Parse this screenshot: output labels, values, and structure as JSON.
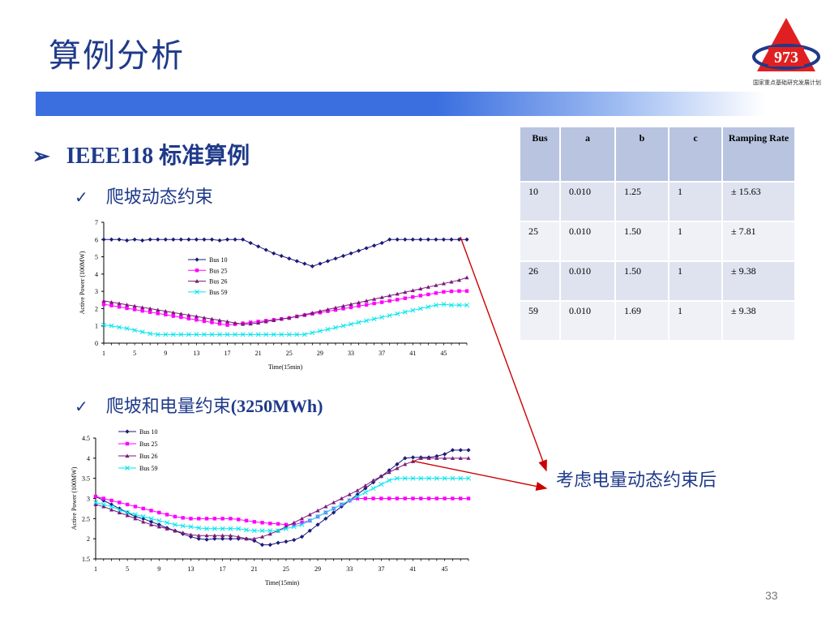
{
  "slide": {
    "title": "算例分析",
    "logo_number": "973",
    "logo_caption": "国家重点基础研究发展计划",
    "bullet_marker": "➢",
    "check_marker": "✓",
    "bullet1": "IEEE118 标准算例",
    "sub1": "爬坡动态约束",
    "sub2_text": "爬坡和电量约束",
    "sub2_paren": "(3250MWh)",
    "annotation": "考虑电量动态约束后",
    "page_number": "33",
    "arrow_color": "#cc0000"
  },
  "table": {
    "headers": [
      "Bus",
      "a",
      "b",
      "c",
      "Ramping Rate"
    ],
    "rows": [
      [
        "10",
        "0.010",
        "1.25",
        "1",
        "± 15.63"
      ],
      [
        "25",
        "0.010",
        "1.50",
        "1",
        "±   7.81"
      ],
      [
        "26",
        "0.010",
        "1.50",
        "1",
        "±   9.38"
      ],
      [
        "59",
        "0.010",
        "1.69",
        "1",
        "±   9.38"
      ]
    ]
  },
  "chart_data": [
    {
      "type": "line",
      "title": "",
      "xlabel": "Time(15min)",
      "ylabel": "Active Power (100MW)",
      "xlim": [
        1,
        48
      ],
      "ylim": [
        0,
        7
      ],
      "x_ticks": [
        "1",
        "5",
        "9",
        "13",
        "17",
        "21",
        "25",
        "29",
        "33",
        "37",
        "41",
        "45"
      ],
      "y_ticks": [
        "0",
        "1",
        "2",
        "3",
        "4",
        "5",
        "6",
        "7"
      ],
      "legend_placement": "center",
      "grid": false,
      "series": [
        {
          "name": "Bus  10",
          "color": "#1a1a7a",
          "marker": "diamond",
          "values": [
            6,
            6,
            6,
            5.95,
            6,
            5.95,
            6,
            6,
            6,
            6,
            6,
            6,
            6,
            6,
            6,
            5.95,
            6,
            6,
            6,
            5.8,
            5.6,
            5.4,
            5.2,
            5.05,
            4.9,
            4.75,
            4.6,
            4.45,
            4.6,
            4.75,
            4.9,
            5.05,
            5.2,
            5.35,
            5.5,
            5.65,
            5.8,
            6,
            6,
            6,
            6,
            6,
            6,
            6,
            6,
            6,
            6,
            6
          ]
        },
        {
          "name": "Bus  25",
          "color": "#ff00ff",
          "marker": "square",
          "values": [
            2.25,
            2.18,
            2.1,
            2.02,
            1.95,
            1.87,
            1.8,
            1.72,
            1.65,
            1.57,
            1.5,
            1.42,
            1.35,
            1.27,
            1.2,
            1.12,
            1.05,
            1.1,
            1.15,
            1.2,
            1.25,
            1.3,
            1.35,
            1.4,
            1.45,
            1.55,
            1.62,
            1.7,
            1.77,
            1.85,
            1.92,
            2,
            2.07,
            2.15,
            2.22,
            2.3,
            2.37,
            2.45,
            2.52,
            2.6,
            2.67,
            2.75,
            2.82,
            2.9,
            2.97,
            3,
            3.02,
            3.02
          ]
        },
        {
          "name": "Bus  26",
          "color": "#7a1a7a",
          "marker": "triangle",
          "values": [
            2.45,
            2.37,
            2.3,
            2.22,
            2.15,
            2.07,
            2,
            1.92,
            1.85,
            1.77,
            1.7,
            1.62,
            1.55,
            1.47,
            1.4,
            1.32,
            1.25,
            1.17,
            1.1,
            1.12,
            1.17,
            1.25,
            1.32,
            1.4,
            1.47,
            1.55,
            1.65,
            1.75,
            1.85,
            1.95,
            2.05,
            2.15,
            2.25,
            2.35,
            2.45,
            2.55,
            2.65,
            2.75,
            2.85,
            2.95,
            3.05,
            3.15,
            3.25,
            3.35,
            3.45,
            3.55,
            3.65,
            3.8
          ]
        },
        {
          "name": "Bus  59",
          "color": "#00e5ee",
          "marker": "x",
          "values": [
            1.05,
            1,
            0.92,
            0.85,
            0.75,
            0.65,
            0.55,
            0.5,
            0.5,
            0.5,
            0.5,
            0.5,
            0.5,
            0.5,
            0.5,
            0.5,
            0.5,
            0.5,
            0.5,
            0.5,
            0.5,
            0.5,
            0.5,
            0.5,
            0.5,
            0.5,
            0.5,
            0.6,
            0.7,
            0.8,
            0.9,
            1,
            1.1,
            1.2,
            1.3,
            1.4,
            1.5,
            1.6,
            1.7,
            1.8,
            1.9,
            2,
            2.1,
            2.2,
            2.25,
            2.2,
            2.2,
            2.2
          ]
        }
      ]
    },
    {
      "type": "line",
      "title": "",
      "xlabel": "Time(15min)",
      "ylabel": "Active Power (100MW)",
      "xlim": [
        1,
        48
      ],
      "ylim": [
        1.5,
        4.5
      ],
      "x_ticks": [
        "1",
        "5",
        "9",
        "13",
        "17",
        "21",
        "25",
        "29",
        "33",
        "37",
        "41",
        "45"
      ],
      "y_ticks": [
        "1.5",
        "2",
        "2.5",
        "3",
        "3.5",
        "4",
        "4.5"
      ],
      "legend_placement": "top-left",
      "grid": false,
      "series": [
        {
          "name": "Bus 10",
          "color": "#1a1a7a",
          "marker": "diamond",
          "values": [
            3.05,
            2.95,
            2.85,
            2.75,
            2.65,
            2.55,
            2.5,
            2.42,
            2.35,
            2.27,
            2.2,
            2.12,
            2.05,
            2,
            1.98,
            2,
            2,
            2,
            2,
            2,
            1.95,
            1.85,
            1.85,
            1.9,
            1.93,
            1.97,
            2.05,
            2.2,
            2.35,
            2.5,
            2.65,
            2.8,
            2.95,
            3.1,
            3.25,
            3.4,
            3.55,
            3.7,
            3.85,
            4,
            4.02,
            4.02,
            4.02,
            4.05,
            4.1,
            4.2,
            4.2,
            4.2
          ]
        },
        {
          "name": "Bus 25",
          "color": "#ff00ff",
          "marker": "square",
          "values": [
            3.05,
            3,
            2.95,
            2.9,
            2.85,
            2.8,
            2.75,
            2.7,
            2.65,
            2.6,
            2.55,
            2.52,
            2.5,
            2.5,
            2.5,
            2.5,
            2.5,
            2.5,
            2.48,
            2.45,
            2.42,
            2.4,
            2.38,
            2.37,
            2.35,
            2.35,
            2.4,
            2.45,
            2.55,
            2.65,
            2.75,
            2.85,
            2.95,
            3,
            3,
            3,
            3,
            3,
            3,
            3,
            3,
            3,
            3,
            3,
            3,
            3,
            3,
            3
          ]
        },
        {
          "name": "Bus 26",
          "color": "#7a1a7a",
          "marker": "triangle",
          "values": [
            2.85,
            2.8,
            2.72,
            2.65,
            2.58,
            2.5,
            2.42,
            2.35,
            2.3,
            2.25,
            2.2,
            2.15,
            2.1,
            2.08,
            2.08,
            2.08,
            2.08,
            2.08,
            2.05,
            2,
            2,
            2.05,
            2.12,
            2.2,
            2.3,
            2.4,
            2.5,
            2.6,
            2.7,
            2.8,
            2.9,
            3,
            3.1,
            3.2,
            3.32,
            3.45,
            3.55,
            3.65,
            3.75,
            3.85,
            3.92,
            4,
            4,
            4,
            4,
            4,
            4,
            4
          ]
        },
        {
          "name": "Bus 59",
          "color": "#00e5ee",
          "marker": "x",
          "values": [
            2.9,
            2.85,
            2.8,
            2.72,
            2.65,
            2.6,
            2.55,
            2.5,
            2.45,
            2.4,
            2.35,
            2.32,
            2.3,
            2.27,
            2.25,
            2.25,
            2.25,
            2.25,
            2.25,
            2.22,
            2.2,
            2.2,
            2.2,
            2.2,
            2.25,
            2.3,
            2.35,
            2.45,
            2.55,
            2.65,
            2.75,
            2.85,
            2.95,
            3.05,
            3.15,
            3.25,
            3.35,
            3.45,
            3.5,
            3.5,
            3.5,
            3.5,
            3.5,
            3.5,
            3.5,
            3.5,
            3.5,
            3.5
          ]
        }
      ]
    }
  ]
}
